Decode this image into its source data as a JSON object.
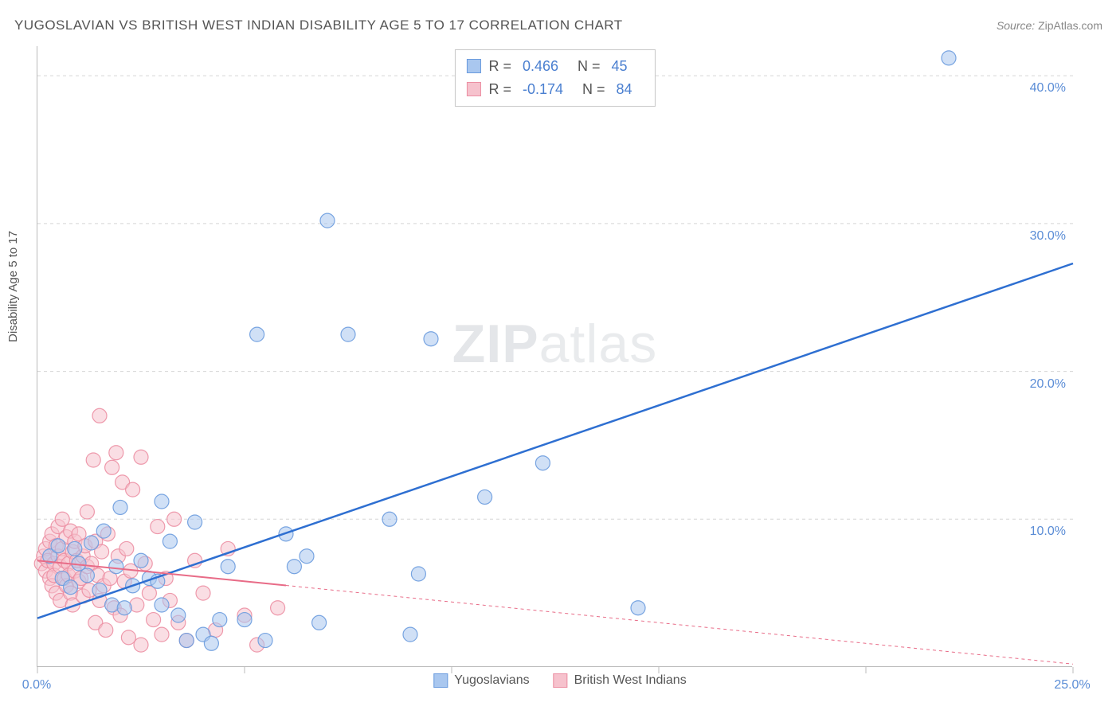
{
  "title": "YUGOSLAVIAN VS BRITISH WEST INDIAN DISABILITY AGE 5 TO 17 CORRELATION CHART",
  "source_label": "Source:",
  "source_value": "ZipAtlas.com",
  "ylabel": "Disability Age 5 to 17",
  "watermark_bold": "ZIP",
  "watermark_rest": "atlas",
  "chart": {
    "type": "scatter",
    "xlim": [
      0,
      25
    ],
    "ylim": [
      0,
      42
    ],
    "x_ticks": [
      0,
      5,
      10,
      15,
      20,
      25
    ],
    "x_tick_labels": [
      "0.0%",
      "",
      "",
      "",
      "",
      "25.0%"
    ],
    "y_ticks": [
      10,
      20,
      30,
      40
    ],
    "y_tick_labels": [
      "10.0%",
      "20.0%",
      "30.0%",
      "40.0%"
    ],
    "grid_color": "#d5d5d5",
    "background_color": "#ffffff",
    "axis_color": "#bbbbbb",
    "label_fontsize": 16,
    "tick_color": "#5b8dd6",
    "marker_radius": 9,
    "marker_opacity": 0.55,
    "marker_stroke_opacity": 0.9,
    "series": [
      {
        "name": "Yugoslavians",
        "color_fill": "#a9c7ef",
        "color_stroke": "#6a9bde",
        "line_color": "#2e6fd1",
        "line_width": 2.5,
        "line_dash": "none",
        "R": "0.466",
        "N": "45",
        "trend": {
          "x1": 0,
          "y1": 3.3,
          "x2": 25,
          "y2": 27.3
        },
        "points": [
          [
            0.3,
            7.5
          ],
          [
            0.5,
            8.2
          ],
          [
            0.6,
            6.0
          ],
          [
            0.8,
            5.4
          ],
          [
            0.9,
            8.0
          ],
          [
            1.0,
            7.0
          ],
          [
            1.2,
            6.2
          ],
          [
            1.3,
            8.4
          ],
          [
            1.5,
            5.2
          ],
          [
            1.6,
            9.2
          ],
          [
            1.8,
            4.2
          ],
          [
            1.9,
            6.8
          ],
          [
            2.0,
            10.8
          ],
          [
            2.1,
            4.0
          ],
          [
            2.3,
            5.5
          ],
          [
            2.5,
            7.2
          ],
          [
            2.7,
            6.0
          ],
          [
            2.9,
            5.8
          ],
          [
            3.0,
            11.2
          ],
          [
            3.0,
            4.2
          ],
          [
            3.2,
            8.5
          ],
          [
            3.4,
            3.5
          ],
          [
            3.6,
            1.8
          ],
          [
            3.8,
            9.8
          ],
          [
            4.0,
            2.2
          ],
          [
            4.2,
            1.6
          ],
          [
            4.4,
            3.2
          ],
          [
            4.6,
            6.8
          ],
          [
            5.0,
            3.2
          ],
          [
            5.3,
            22.5
          ],
          [
            5.5,
            1.8
          ],
          [
            6.0,
            9.0
          ],
          [
            6.2,
            6.8
          ],
          [
            6.5,
            7.5
          ],
          [
            6.8,
            3.0
          ],
          [
            7.0,
            30.2
          ],
          [
            7.5,
            22.5
          ],
          [
            8.5,
            10.0
          ],
          [
            9.0,
            2.2
          ],
          [
            9.2,
            6.3
          ],
          [
            9.5,
            22.2
          ],
          [
            10.8,
            11.5
          ],
          [
            12.2,
            13.8
          ],
          [
            14.5,
            4.0
          ],
          [
            22.0,
            41.2
          ]
        ]
      },
      {
        "name": "British West Indians",
        "color_fill": "#f6c2cd",
        "color_stroke": "#ec8fa3",
        "line_color": "#e86b87",
        "line_width": 2,
        "line_dash": "4 4",
        "line_solid_until_x": 6,
        "R": "-0.174",
        "N": "84",
        "trend": {
          "x1": 0,
          "y1": 7.2,
          "x2": 25,
          "y2": 0.2
        },
        "points": [
          [
            0.1,
            7.0
          ],
          [
            0.15,
            7.5
          ],
          [
            0.2,
            6.5
          ],
          [
            0.2,
            8.0
          ],
          [
            0.25,
            7.2
          ],
          [
            0.3,
            6.0
          ],
          [
            0.3,
            8.5
          ],
          [
            0.35,
            5.5
          ],
          [
            0.35,
            9.0
          ],
          [
            0.4,
            7.0
          ],
          [
            0.4,
            6.2
          ],
          [
            0.45,
            8.2
          ],
          [
            0.45,
            5.0
          ],
          [
            0.5,
            9.5
          ],
          [
            0.5,
            7.5
          ],
          [
            0.55,
            6.8
          ],
          [
            0.55,
            4.5
          ],
          [
            0.6,
            8.0
          ],
          [
            0.6,
            10.0
          ],
          [
            0.65,
            6.0
          ],
          [
            0.65,
            7.2
          ],
          [
            0.7,
            5.5
          ],
          [
            0.7,
            8.8
          ],
          [
            0.75,
            7.0
          ],
          [
            0.75,
            6.2
          ],
          [
            0.8,
            9.2
          ],
          [
            0.8,
            5.0
          ],
          [
            0.85,
            7.8
          ],
          [
            0.85,
            4.2
          ],
          [
            0.9,
            6.5
          ],
          [
            0.9,
            8.5
          ],
          [
            0.95,
            7.2
          ],
          [
            1.0,
            5.8
          ],
          [
            1.0,
            9.0
          ],
          [
            1.05,
            6.0
          ],
          [
            1.1,
            7.5
          ],
          [
            1.1,
            4.8
          ],
          [
            1.15,
            8.2
          ],
          [
            1.2,
            6.8
          ],
          [
            1.2,
            10.5
          ],
          [
            1.25,
            5.2
          ],
          [
            1.3,
            7.0
          ],
          [
            1.35,
            14.0
          ],
          [
            1.4,
            3.0
          ],
          [
            1.4,
            8.5
          ],
          [
            1.45,
            6.2
          ],
          [
            1.5,
            17.0
          ],
          [
            1.5,
            4.5
          ],
          [
            1.55,
            7.8
          ],
          [
            1.6,
            5.5
          ],
          [
            1.65,
            2.5
          ],
          [
            1.7,
            9.0
          ],
          [
            1.75,
            6.0
          ],
          [
            1.8,
            13.5
          ],
          [
            1.85,
            4.0
          ],
          [
            1.9,
            14.5
          ],
          [
            1.95,
            7.5
          ],
          [
            2.0,
            3.5
          ],
          [
            2.05,
            12.5
          ],
          [
            2.1,
            5.8
          ],
          [
            2.15,
            8.0
          ],
          [
            2.2,
            2.0
          ],
          [
            2.25,
            6.5
          ],
          [
            2.3,
            12.0
          ],
          [
            2.4,
            4.2
          ],
          [
            2.5,
            14.2
          ],
          [
            2.5,
            1.5
          ],
          [
            2.6,
            7.0
          ],
          [
            2.7,
            5.0
          ],
          [
            2.8,
            3.2
          ],
          [
            2.9,
            9.5
          ],
          [
            3.0,
            2.2
          ],
          [
            3.1,
            6.0
          ],
          [
            3.2,
            4.5
          ],
          [
            3.3,
            10.0
          ],
          [
            3.4,
            3.0
          ],
          [
            3.6,
            1.8
          ],
          [
            3.8,
            7.2
          ],
          [
            4.0,
            5.0
          ],
          [
            4.3,
            2.5
          ],
          [
            4.6,
            8.0
          ],
          [
            5.0,
            3.5
          ],
          [
            5.3,
            1.5
          ],
          [
            5.8,
            4.0
          ]
        ]
      }
    ]
  },
  "stats_box": {
    "r_label": "R",
    "n_label": "N",
    "eq": "="
  },
  "legend_bottom": {
    "items": [
      "Yugoslavians",
      "British West Indians"
    ]
  }
}
